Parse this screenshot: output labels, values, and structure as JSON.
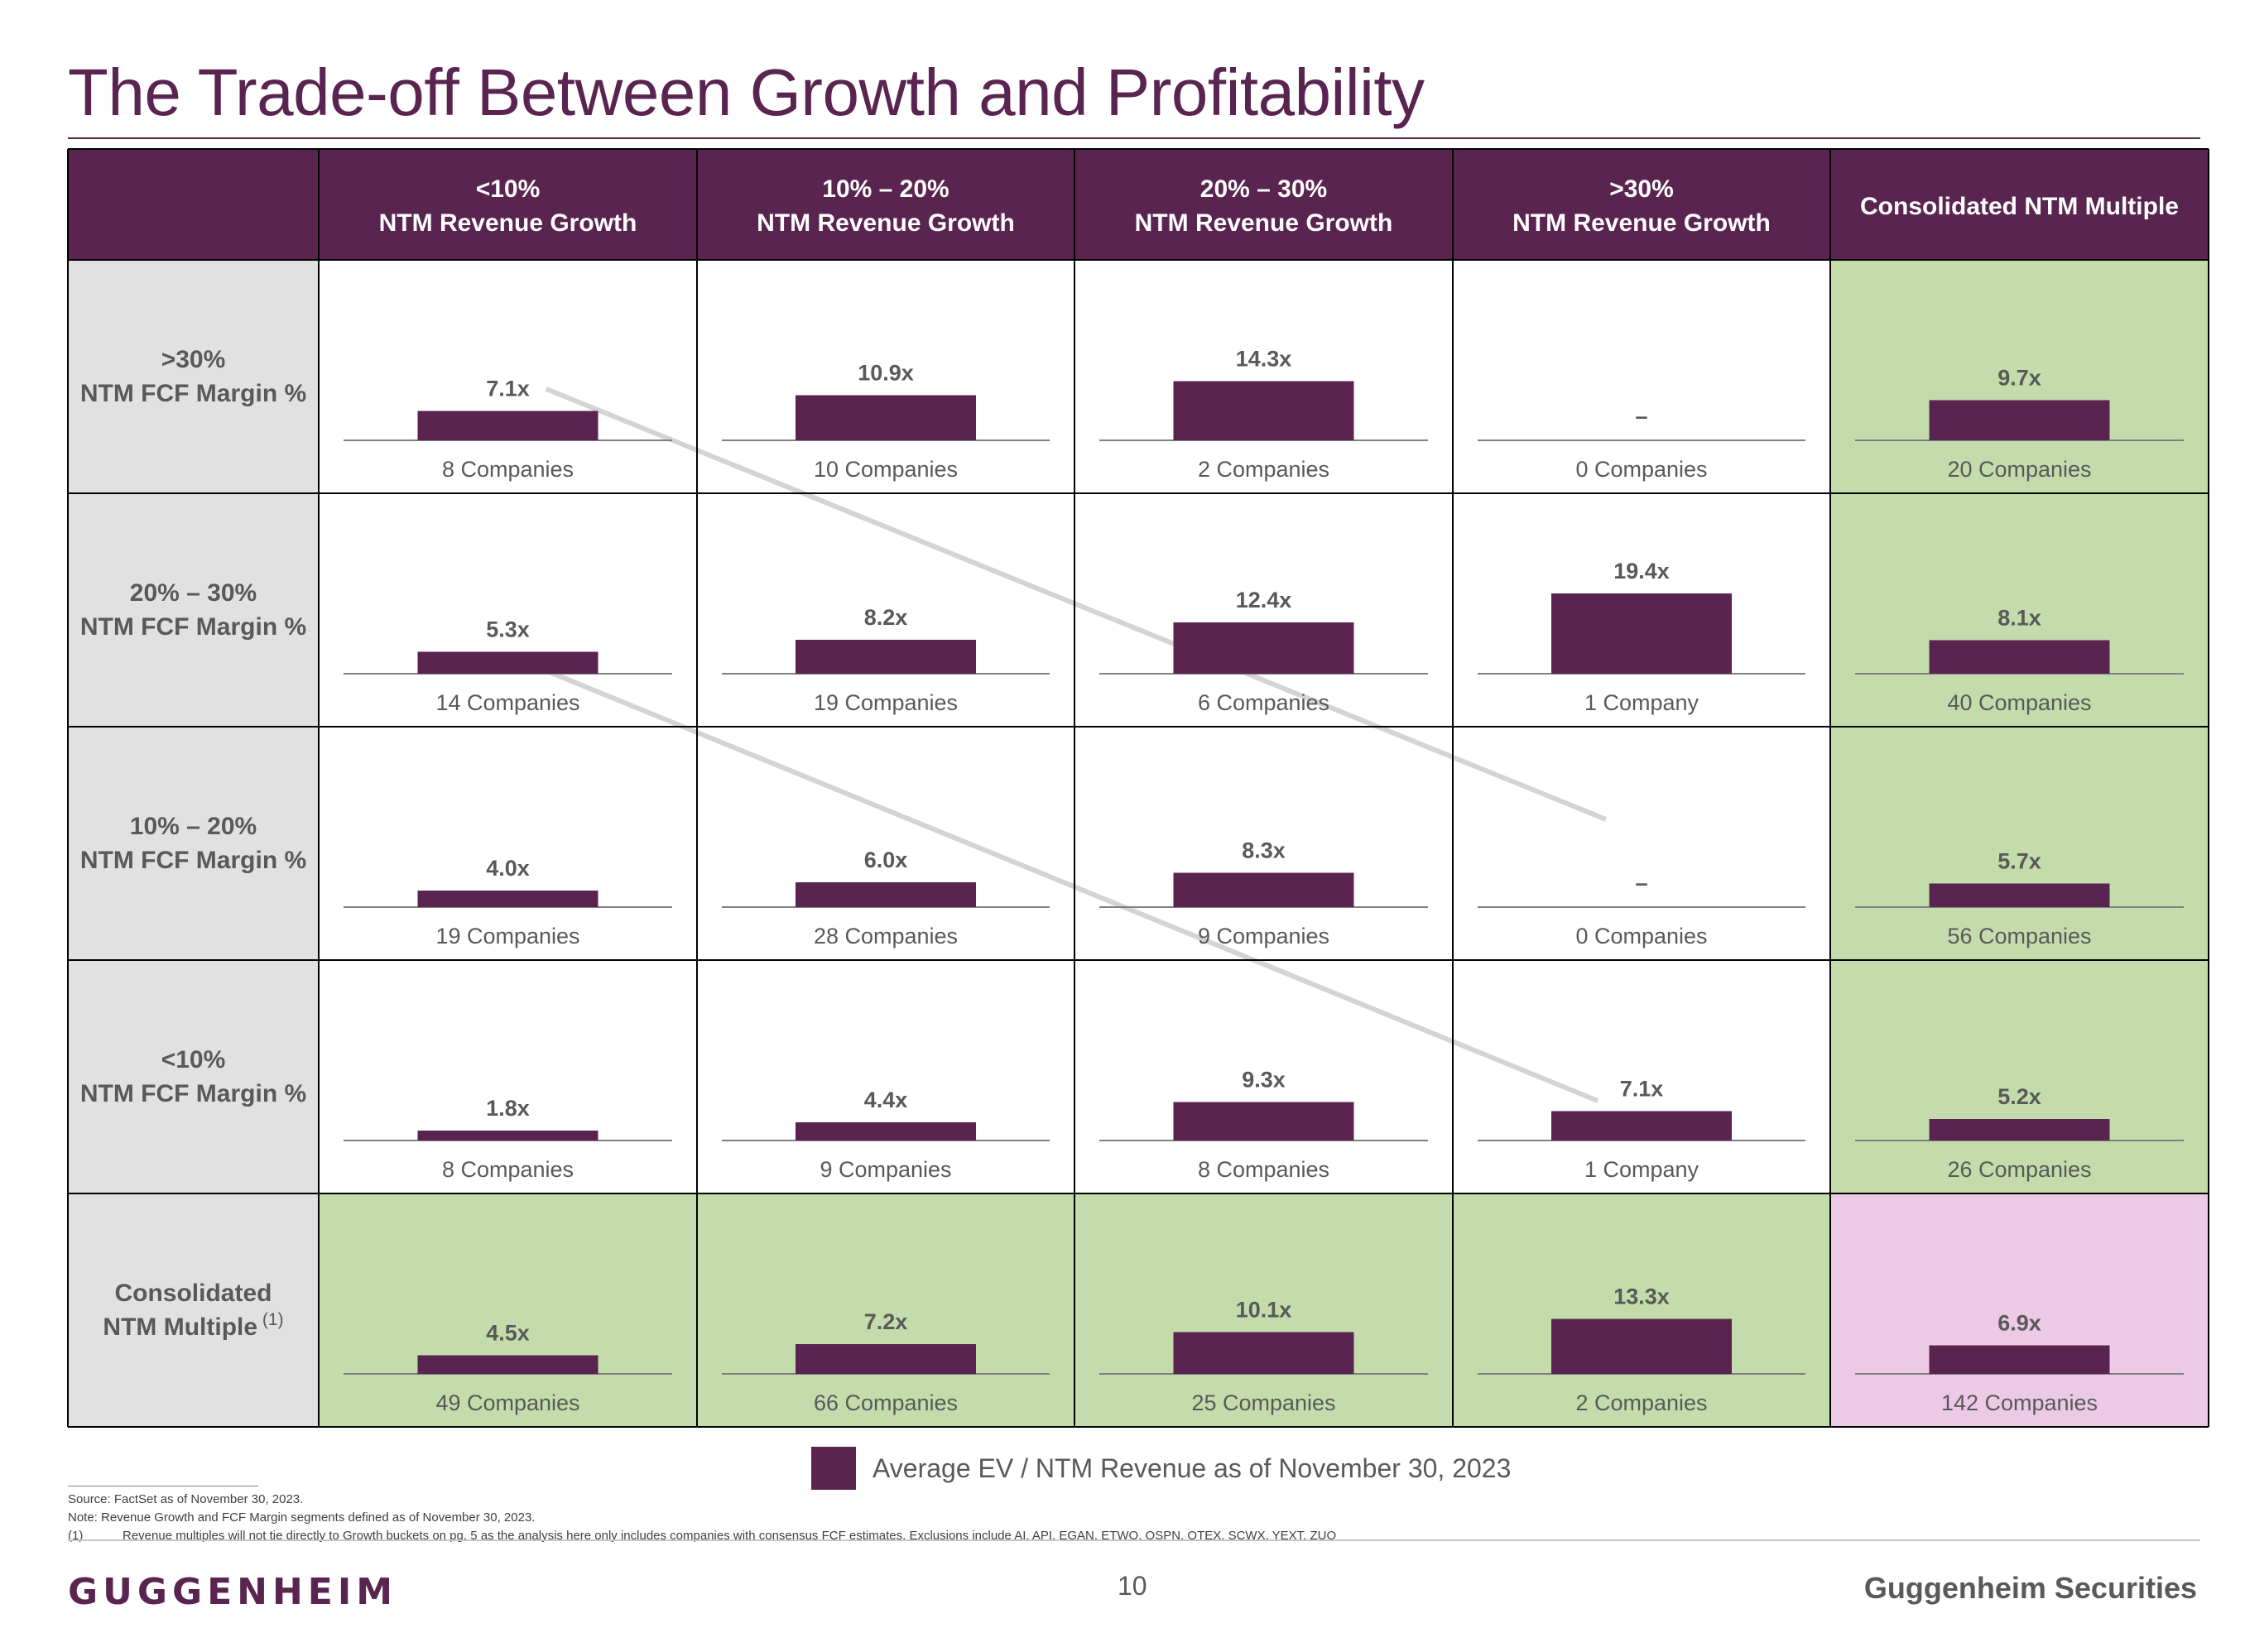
{
  "page": {
    "title": "The Trade-off Between Growth and Profitability",
    "legend_label": "Average EV / NTM Revenue as of November 30, 2023",
    "notes": {
      "source": "Source: FactSet as of November 30, 2023.",
      "note": "Note: Revenue Growth and FCF Margin segments defined as of November 30, 2023.",
      "footnote_ref": "(1)",
      "footnote_text": "Revenue multiples will not tie directly to Growth buckets on pg. 5 as the analysis here only includes companies with consensus FCF estimates. Exclusions include AI, API, EGAN, ETWO, OSPN, OTEX, SCWX, YEXT, ZUO"
    },
    "footer": {
      "logo": "GUGGENHEIM",
      "page_number": "10",
      "brand": "Guggenheim Securities"
    },
    "colors": {
      "header_bg": "#5a2450",
      "bar": "#5a2450",
      "row_label_bg": "#e1e1e1",
      "consolidated_bg": "#c4dcab",
      "total_bg": "#ecc9e5",
      "diagonal": "#d4d4d4"
    }
  },
  "chart_data": {
    "type": "bar",
    "measure": "Average EV / NTM Revenue",
    "columns": [
      {
        "line1": "<10%",
        "line2": "NTM Revenue Growth"
      },
      {
        "line1": "10% – 20%",
        "line2": "NTM Revenue Growth"
      },
      {
        "line1": "20% – 30%",
        "line2": "NTM Revenue Growth"
      },
      {
        "line1": ">30%",
        "line2": "NTM Revenue Growth"
      },
      {
        "line1": "Consolidated NTM Multiple",
        "line2": ""
      }
    ],
    "rows": [
      {
        "line1": ">30%",
        "line2": "NTM FCF Margin %",
        "sup": "",
        "cells": [
          {
            "value": 7.1,
            "label": "7.1x",
            "count": "8 Companies"
          },
          {
            "value": 10.9,
            "label": "10.9x",
            "count": "10 Companies"
          },
          {
            "value": 14.3,
            "label": "14.3x",
            "count": "2 Companies"
          },
          {
            "value": null,
            "label": "–",
            "count": "0 Companies"
          },
          {
            "value": 9.7,
            "label": "9.7x",
            "count": "20 Companies"
          }
        ]
      },
      {
        "line1": "20% – 30%",
        "line2": "NTM FCF Margin %",
        "sup": "",
        "cells": [
          {
            "value": 5.3,
            "label": "5.3x",
            "count": "14 Companies"
          },
          {
            "value": 8.2,
            "label": "8.2x",
            "count": "19 Companies"
          },
          {
            "value": 12.4,
            "label": "12.4x",
            "count": "6 Companies"
          },
          {
            "value": 19.4,
            "label": "19.4x",
            "count": "1 Company"
          },
          {
            "value": 8.1,
            "label": "8.1x",
            "count": "40 Companies"
          }
        ]
      },
      {
        "line1": "10% – 20%",
        "line2": "NTM FCF Margin %",
        "sup": "",
        "cells": [
          {
            "value": 4.0,
            "label": "4.0x",
            "count": "19 Companies"
          },
          {
            "value": 6.0,
            "label": "6.0x",
            "count": "28 Companies"
          },
          {
            "value": 8.3,
            "label": "8.3x",
            "count": "9 Companies"
          },
          {
            "value": null,
            "label": "–",
            "count": "0 Companies"
          },
          {
            "value": 5.7,
            "label": "5.7x",
            "count": "56 Companies"
          }
        ]
      },
      {
        "line1": "<10%",
        "line2": "NTM FCF Margin %",
        "sup": "",
        "cells": [
          {
            "value": 1.8,
            "label": "1.8x",
            "count": "8 Companies"
          },
          {
            "value": 4.4,
            "label": "4.4x",
            "count": "9 Companies"
          },
          {
            "value": 9.3,
            "label": "9.3x",
            "count": "8 Companies"
          },
          {
            "value": 7.1,
            "label": "7.1x",
            "count": "1 Company"
          },
          {
            "value": 5.2,
            "label": "5.2x",
            "count": "26 Companies"
          }
        ]
      },
      {
        "line1": "Consolidated",
        "line2": "NTM Multiple",
        "sup": "(1)",
        "cells": [
          {
            "value": 4.5,
            "label": "4.5x",
            "count": "49 Companies"
          },
          {
            "value": 7.2,
            "label": "7.2x",
            "count": "66 Companies"
          },
          {
            "value": 10.1,
            "label": "10.1x",
            "count": "25 Companies"
          },
          {
            "value": 13.3,
            "label": "13.3x",
            "count": "2 Companies"
          },
          {
            "value": 6.9,
            "label": "6.9x",
            "count": "142 Companies"
          }
        ]
      }
    ]
  }
}
